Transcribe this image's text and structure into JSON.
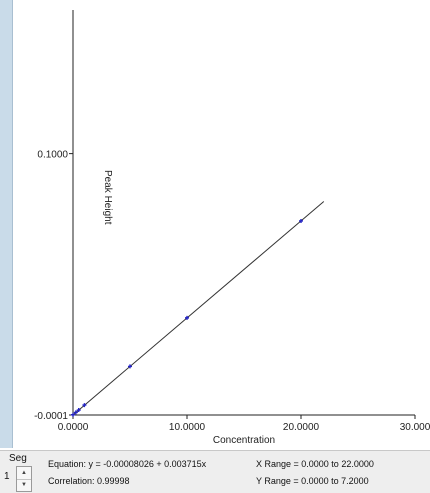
{
  "chart_data": {
    "type": "scatter",
    "xlabel": "Concentration",
    "ylabel": "Peak Height",
    "x_ticks": [
      "0.0000",
      "10.0000",
      "20.0000",
      "30.000"
    ],
    "y_ticks": [
      "0.1000",
      "-0.0001"
    ],
    "xlim": [
      0,
      30
    ],
    "ylim": [
      -0.0001,
      0.155
    ],
    "points": [
      {
        "x": 0.0,
        "y": 0.0
      },
      {
        "x": 0.25,
        "y": 0.0009
      },
      {
        "x": 0.5,
        "y": 0.0018
      },
      {
        "x": 1.0,
        "y": 0.0037
      },
      {
        "x": 5.0,
        "y": 0.0185
      },
      {
        "x": 10.0,
        "y": 0.0371
      },
      {
        "x": 20.0,
        "y": 0.0742
      }
    ],
    "fit": {
      "slope": 0.003715,
      "intercept": -8.026e-05,
      "x_range": [
        0,
        22
      ]
    },
    "colors": {
      "points": "#2323c8",
      "line": "#333333",
      "axes": "#222222"
    }
  },
  "footer": {
    "seg_label": "Seg",
    "seg_value": "1",
    "equation": "Equation: y = -0.00008026 + 0.003715x",
    "correlation": "Correlation: 0.99998",
    "x_range": "X Range = 0.0000 to 22.0000",
    "y_range": "Y Range = 0.0000 to 7.2000"
  },
  "icons": {
    "spin_up": "spin-up-arrow-icon",
    "spin_down": "spin-down-arrow-icon"
  }
}
